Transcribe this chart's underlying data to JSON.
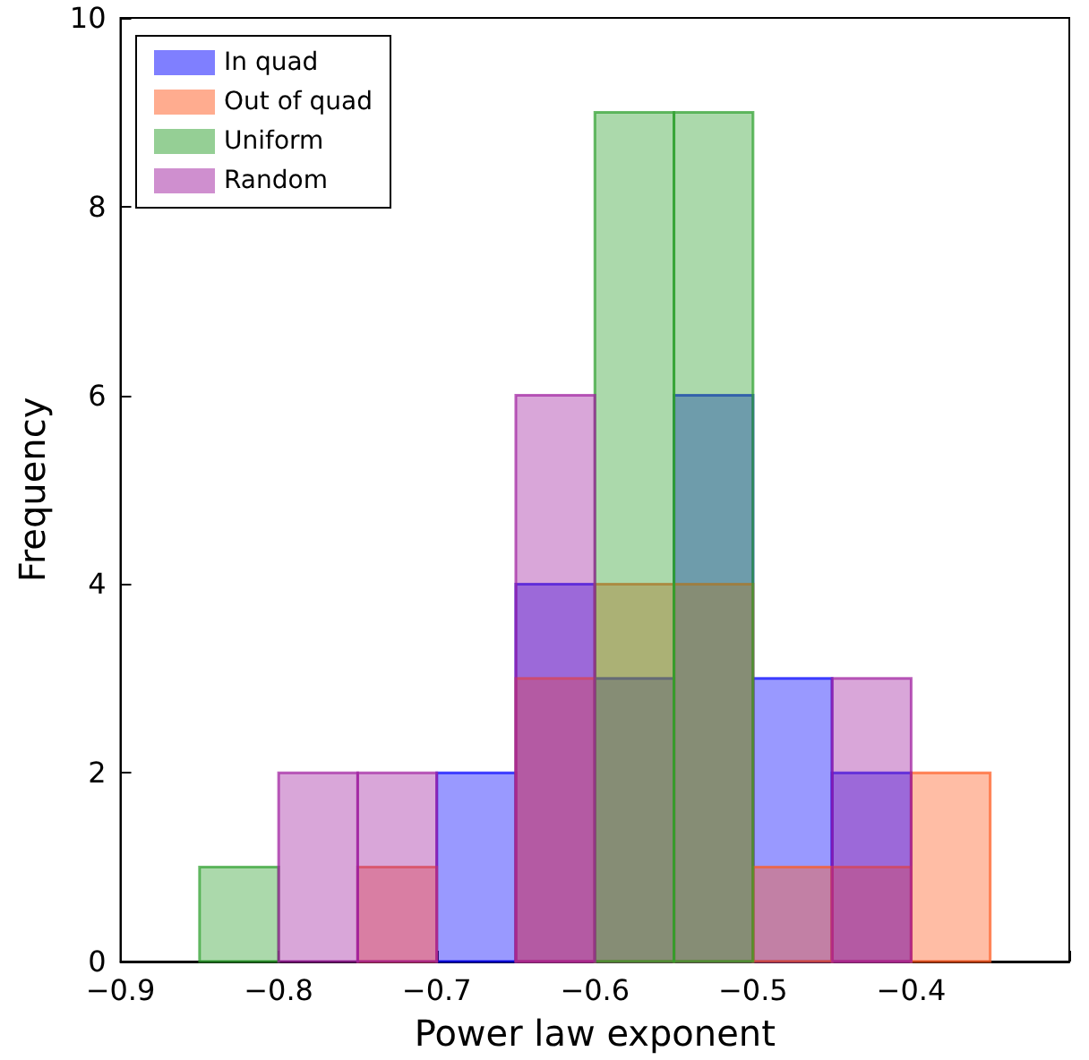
{
  "chart_data": {
    "type": "histogram",
    "xlabel": "Power law exponent",
    "ylabel": "Frequency",
    "bins": [
      -0.85,
      -0.8,
      -0.75,
      -0.7,
      -0.65,
      -0.6,
      -0.55,
      -0.5,
      -0.45,
      -0.4,
      -0.35
    ],
    "series": [
      {
        "name": "In quad",
        "color": "#0000ff",
        "values": [
          0,
          0,
          0,
          2,
          4,
          3,
          6,
          3,
          2,
          0
        ]
      },
      {
        "name": "Out of quad",
        "color": "#ff5a1f",
        "values": [
          0,
          0,
          1,
          null,
          3,
          4,
          4,
          1,
          1,
          2
        ]
      },
      {
        "name": "Uniform",
        "color": "#2ca02c",
        "values": [
          1,
          0,
          0,
          null,
          null,
          9,
          9,
          0,
          0,
          0
        ]
      },
      {
        "name": "Random",
        "color": "#a020a0",
        "values": [
          0,
          2,
          2,
          null,
          6,
          null,
          null,
          null,
          3,
          0
        ]
      }
    ],
    "xlim": [
      -0.9,
      -0.3
    ],
    "xticks": [
      -0.9,
      -0.8,
      -0.7,
      -0.6,
      -0.5,
      -0.4,
      {
        "value": -0.3,
        "label": null
      }
    ],
    "ylim": [
      0,
      10
    ],
    "yticks": [
      0,
      2,
      4,
      6,
      8,
      10
    ],
    "grid": false,
    "legend": "top left"
  }
}
